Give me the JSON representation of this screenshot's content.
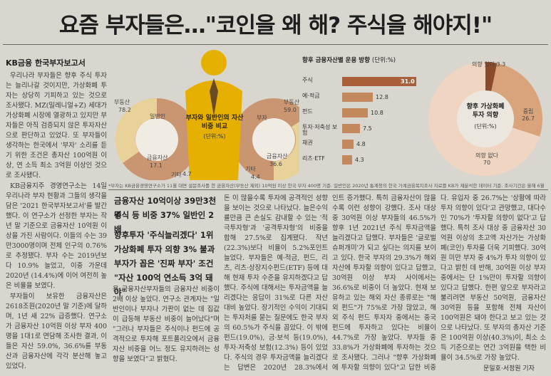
{
  "headline": "요즘 부자들은…\"코인을 왜 해? 주식을 해야지!\"",
  "section_label": "KB금융 한국부자보고서",
  "left_column": [
    "우리나라 부자들은 향후 주식 투자는 늘리나갈 것이지만, 가상화폐 투자는 상당히 기피하고 있는 것으로 조사됐다. MZ(밀레니얼+Z) 세대가 가상화폐 시장에 열광하고 있지만 부자들은 아직 검증되지 않은 투자자산으로 판단하고 있었다. 또 부자들이 생각하는 한국에서 '부자' 소리를 듣기 위한 조건은 총자산 100억원 이상, 연 소득 최소 3억원 이상인 것으로 조사됐다.",
    "KB금융지주 경영연구소는 14일 우리나라 부자 현황과 그들의 생각을 담은 '2021 한국부자보고서'를 발간했다. 이 연구소가 선정한 부자는 작년 말 기준으로 금융자산 10억원 이상을 가진 사람이다. 이들의 수는 39만3000명이며 전체 인구의 0.76%로 추정됐다. 부자 수는 2019년보다 10.9% 늘었고, 이중 가운데 2020년 (14.4%)에 이어 여전히 높은 비율을 보였다.",
    "부자들이 보유한 금융자산은 2618조원(2020년 말 기준)에 달하며, 1년 새 22% 급증했다. 연구소가 금융자산 10억원 이상 부자 400명을 1대1로 면담해 조사한 결과, 이들은 자산 59.0%, 36.6%를 부동산과 금융자산에 각각 분산해 놓고 있었다."
  ],
  "donut_chart": {
    "title": "부자와 일반인의 자산 비중 비교",
    "unit": "(단위:%)",
    "left_label": "일반인",
    "right_label": "부자",
    "left_segments": [
      {
        "name": "부동산",
        "value": "78.2"
      },
      {
        "name": "금융자산",
        "value": "17.1"
      },
      {
        "name": "기타",
        "value": "4.7"
      }
    ],
    "right_segments": [
      {
        "name": "부동산",
        "value": "59.0"
      },
      {
        "name": "금융자산",
        "value": "36.6"
      },
      {
        "name": "기타",
        "value": "4.4"
      }
    ]
  },
  "chart_data": [
    {
      "type": "bar",
      "title": "향후 금융자산별 운용 방향",
      "unit": "(단위:%)",
      "categories": [
        "주식",
        "예·적금",
        "펀드",
        "투자·저축성 보험",
        "채권",
        "리츠·ETF"
      ],
      "values": [
        31.0,
        12.8,
        10.8,
        7.5,
        4.8,
        4.3
      ],
      "value_labels": [
        "31.0",
        "12.8",
        "10.8",
        "7.5",
        "4.8",
        "4.3"
      ]
    },
    {
      "type": "pie",
      "title": "향후 가상화폐 투자 의향",
      "unit": "(단위:%)",
      "categories": [
        "의향 있다",
        "중립",
        "의향 없다"
      ],
      "values": [
        3.3,
        26.7,
        70.0
      ]
    }
  ],
  "chart_caption": "*부자는 KB금융경영연구소가 11월 대면 설문조사를 한 금융자산(부동산 제외) 10억원 이상 한국 부자 400명 기준. 일반인은 2020년 통계청의 한국 가계금융복지조사 자료를 KB가 재분석한 데이터 기준. 조사기간은 올해 6월 1일~7월 16일.",
  "subheads": [
    "금융자산 10억이상 39만3천명",
    "주식 등 비중 37% 일반인 2배",
    "향후투자 '주식늘리겠다' 1위",
    "가상화폐 투자 의향 3% 불과",
    "부자가 꼽은 '진짜 부자' 조건",
    "\"자산 100억 연소득 3억 돼야\""
  ],
  "col2_text": "용 금융자산부자들의 금융자산 비중이 2배 이상 높았다. 연구소 관계자는 \"일반인이나 부자나 가판이 없는 데 집값이 급등해 부동산 비중이 늘어났다\"며 \"그러나 부자들은 주식이나 펀드에 공격적으로 투자해 포트폴리오에서 금융자산 비중을 어느 정도 유지하려는 성향을 보였다\"고 밝혔다.",
  "col3_text": "돈 이 많을수록 투자에 공격적인 성향을 보이는 것으로 나타났다. 늘은수익률만큼 큰 손실도 감내할 수 있는 '적극투자형'과 '공격투자형'의 비중을 합해 27.5%로 집계됐다. 작년(22.3%)보다 비율이 5.2%포인트 늘었다. 부자들은 예·적금, 펀드, 리츠, 리츠·상장지수펀드(ETF) 등에 대해 현재 투자 수준을 유지하겠다고 답했다. 주식에 대해서는 투자금액을 늘리겠다는 응답이 31%로 다른 자산 대비 높았다. 장기적인 수익이 기대되는 투자처를 묻는 질문에도 한국 부자의 60.5%가 주식을 꼽았다. 이 밖에 펀드(19.0%), 금·보석 등(19.0%), 투자·저축성 보험(12.3%) 등이 있었다. 주식의 경우 투자금액을 늘리겠다는 답변은 2020년 28.3%에서 2021년 40.0%로 11.7%포",
  "col4_text": "인트 증가했다. 특히 금융자산이 많을수록 이런 성향이 강했다. 조사 대상 중 30억원 이상 부자들의 46.5%가 향후 1년 2021년 주식 투자금액을 늘리겠다고 답했다. 부자들은 '글로벌 슈퍼개미'가 되고 싶다는 의지를 보이고 있다. 한국 부자의 29.3%가 해외 자산에 투자할 의향이 있다고 답했고, 30억원 이상 부자 사이에서는 36.6%로 비중이 더 높았다. 현재 보유하고 있는 해외 자산 종류로는 \"해외 펀드\"가 75%로 가장 많았고, 해외 주식 펀드 투자자 중에서는 중국 펀드에 투자하고 있다는 비율이 44.7%로 가장 높았다. 부자들 중 33.8%가 가상화폐에 투자하는 것으로 조사됐다. 그러나 \"향후 가상화폐에 투자할 의향이 있다\"고 답한 비중은 3.3%에 불과했",
  "col5_text": "다. 유입자 중 26.7%는 '상황에 따라 투자 의향이 있다'고 관망했고, 대다수인 70%가 '투자할 의향이 없다'고 답했다. 특히 조사 대상 중 금융자산 30억원 이상의 초고액 자산가는 가상화폐(코인) 투자를 더욱 기피했다. 30억원 미만 부자 중 4%가 투자 의향이 있다고 밝힌 데 반해, 30억원 이상 부자 중에서는 단 1%만이 투자할 의향이 있다고 답했다. 한편 앞으로 부자라고 불리려면 부동산 50억원, 금융자산 30억원 등을 포함해 전체 자산이 100억원은 돼야 한다고 보고 있는 것으로 나타났다. 또 부자의 총자산 기준은 100억원 이상(40.3%)이, 최소 소득 기준으로는 연간 3억원을 택한 비율이 34.5%로 가장 높았다.",
  "byline": "문일호·서정원 기자"
}
